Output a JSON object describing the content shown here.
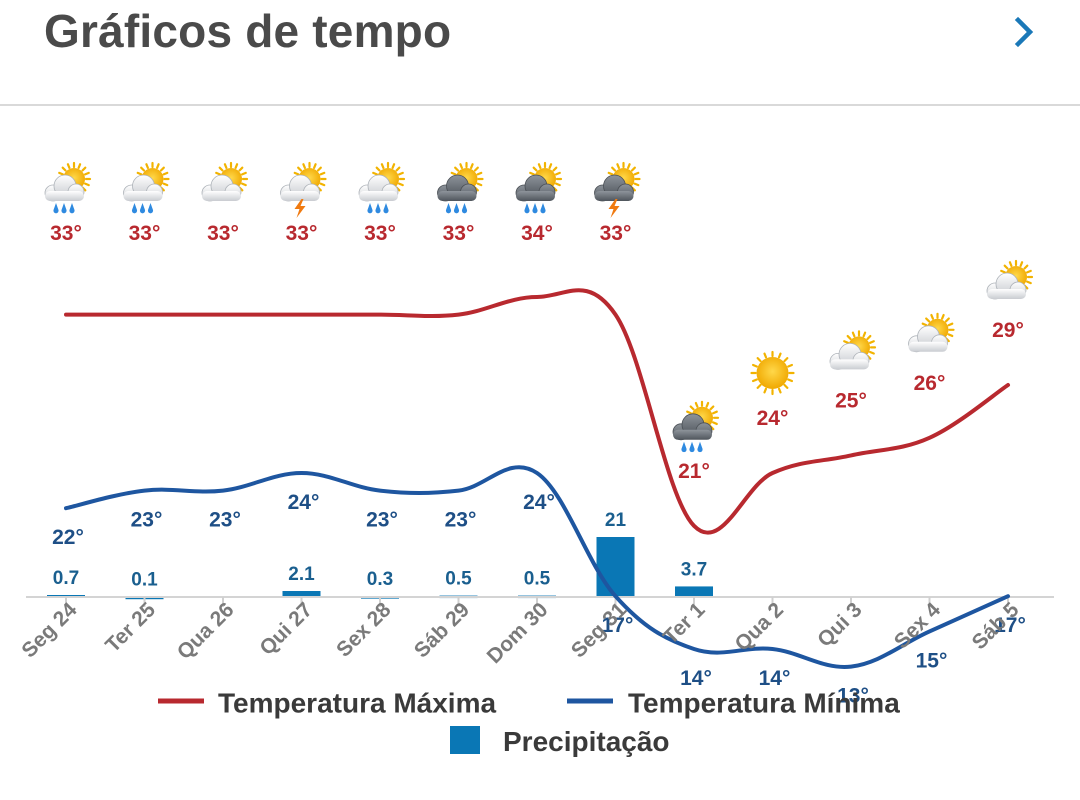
{
  "header": {
    "title": "Gráficos de tempo",
    "next_icon": "chevron-right-icon"
  },
  "colors": {
    "max_temp": "#b8292f",
    "min_temp": "#1e56a0",
    "precip": "#0a77b5",
    "max_label": "#b8292f",
    "min_label": "#1e4f86",
    "axis_label": "#7a7a7a",
    "title": "#4a4a4a"
  },
  "legend": {
    "max_label": "Temperatura Máxima",
    "min_label": "Temperatura Mínima",
    "precip_label": "Precipitação"
  },
  "chart_data": {
    "type": "line",
    "categories": [
      "Seg 24",
      "Ter 25",
      "Qua 26",
      "Qui 27",
      "Sex 28",
      "Sáb 29",
      "Dom 30",
      "Seg 31",
      "Ter 1",
      "Qua 2",
      "Qui 3",
      "Sex 4",
      "Sáb 5"
    ],
    "series": [
      {
        "name": "Temperatura Máxima",
        "kind": "line",
        "values": [
          33,
          33,
          33,
          33,
          33,
          33,
          34,
          33,
          21,
          24,
          25,
          26,
          29
        ],
        "labels": [
          "33°",
          "33°",
          "33°",
          "33°",
          "33°",
          "33°",
          "34°",
          "33°",
          "21°",
          "24°",
          "25°",
          "26°",
          "29°"
        ]
      },
      {
        "name": "Temperatura Mínima",
        "kind": "line",
        "values": [
          22,
          23,
          23,
          24,
          23,
          23,
          24,
          17,
          14,
          14,
          13,
          15,
          17
        ],
        "labels": [
          "22°",
          "23°",
          "23°",
          "24°",
          "23°",
          "23°",
          "24°",
          "17°",
          "14°",
          "14°",
          "13°",
          "15°",
          "17°"
        ]
      },
      {
        "name": "Precipitação",
        "kind": "bar",
        "values": [
          0.7,
          0.1,
          0,
          2.1,
          0.3,
          0.5,
          0.5,
          21,
          3.7,
          0,
          0,
          0,
          0
        ],
        "labels": [
          "0.7",
          "0.1",
          "",
          "2.1",
          "0.3",
          "0.5",
          "0.5",
          "21",
          "3.7",
          "",
          "",
          "",
          ""
        ]
      }
    ],
    "icons": [
      "sun-cloud-rain-icon",
      "sun-cloud-rain-icon",
      "sun-cloud-icon",
      "sun-cloud-storm-icon",
      "sun-cloud-rain-icon",
      "sun-dark-cloud-rain-icon",
      "sun-dark-cloud-rain-icon",
      "sun-dark-cloud-storm-icon",
      "sun-dark-cloud-rain-icon",
      "sun-icon",
      "sun-cloud-icon",
      "sun-cloud-icon",
      "sun-cloud-icon"
    ],
    "xlabel": "",
    "ylabel": "",
    "legend_position": "bottom",
    "grid": false
  }
}
